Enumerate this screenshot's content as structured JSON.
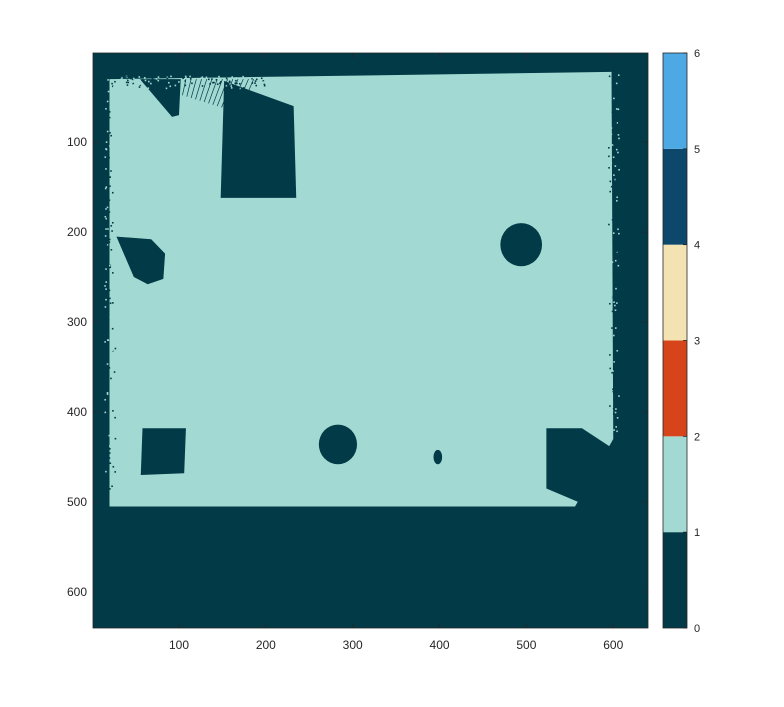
{
  "chart_data": {
    "type": "heatmap",
    "title": "",
    "xlabel": "",
    "ylabel": "",
    "xlim": [
      1,
      640
    ],
    "ylim": [
      1,
      640
    ],
    "y_reversed": true,
    "x_ticks": [
      100,
      200,
      300,
      400,
      500,
      600
    ],
    "x_tick_labels": [
      "100",
      "200",
      "300",
      "400",
      "500",
      "600"
    ],
    "y_ticks": [
      100,
      200,
      300,
      400,
      500,
      600
    ],
    "y_tick_labels": [
      "100",
      "200",
      "300",
      "400",
      "500",
      "600"
    ],
    "grid": false,
    "background_value": 0,
    "regions": [
      {
        "value": 1,
        "kind": "polygon",
        "points": [
          [
            20,
            30
          ],
          [
            598,
            22
          ],
          [
            600,
            430
          ],
          [
            556,
            505
          ],
          [
            20,
            505
          ]
        ]
      },
      {
        "value": 0,
        "kind": "polygon",
        "points": [
          [
            152,
            32
          ],
          [
            232,
            60
          ],
          [
            235,
            162
          ],
          [
            148,
            162
          ]
        ]
      },
      {
        "value": 0,
        "kind": "polygon",
        "points": [
          [
            55,
            30
          ],
          [
            102,
            30
          ],
          [
            100,
            70
          ],
          [
            92,
            72
          ]
        ]
      },
      {
        "value": 0,
        "kind": "polygon",
        "points": [
          [
            28,
            205
          ],
          [
            68,
            208
          ],
          [
            84,
            224
          ],
          [
            82,
            252
          ],
          [
            64,
            258
          ],
          [
            48,
            250
          ]
        ]
      },
      {
        "value": 0,
        "kind": "circle",
        "cx": 494,
        "cy": 214,
        "r": 24
      },
      {
        "value": 0,
        "kind": "circle",
        "cx": 283,
        "cy": 436,
        "r": 22
      },
      {
        "value": 0,
        "kind": "ellipse",
        "cx": 398,
        "cy": 450,
        "rx": 5,
        "ry": 8
      },
      {
        "value": 0,
        "kind": "polygon",
        "points": [
          [
            58,
            418
          ],
          [
            108,
            418
          ],
          [
            106,
            468
          ],
          [
            56,
            470
          ]
        ]
      },
      {
        "value": 0,
        "kind": "polygon",
        "points": [
          [
            523,
            418
          ],
          [
            564,
            418
          ],
          [
            605,
            444
          ],
          [
            602,
            505
          ],
          [
            572,
            505
          ],
          [
            523,
            485
          ]
        ]
      }
    ],
    "colormap": [
      {
        "from": 0,
        "to": 1,
        "color": "#033a48"
      },
      {
        "from": 1,
        "to": 2,
        "color": "#a2dad3"
      },
      {
        "from": 2,
        "to": 3,
        "color": "#d7441b"
      },
      {
        "from": 3,
        "to": 4,
        "color": "#f3e3b2"
      },
      {
        "from": 4,
        "to": 5,
        "color": "#0d476b"
      },
      {
        "from": 5,
        "to": 6,
        "color": "#4ca9e4"
      }
    ],
    "colorbar": {
      "range": [
        0,
        6
      ],
      "ticks": [
        0,
        1,
        2,
        3,
        4,
        5,
        6
      ],
      "tick_labels": [
        "0",
        "1",
        "2",
        "3",
        "4",
        "5",
        "6"
      ]
    }
  }
}
